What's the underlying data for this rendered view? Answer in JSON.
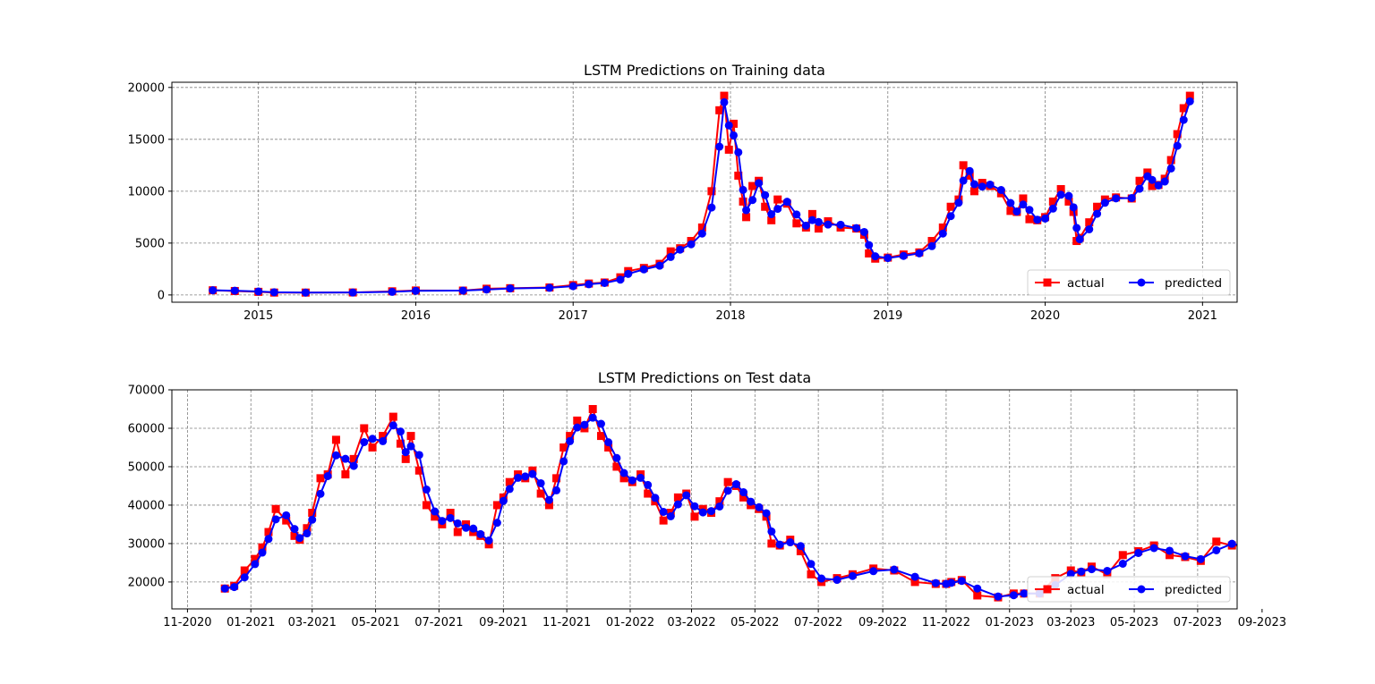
{
  "colors": {
    "actual": "#ff0000",
    "predicted": "#0000ff",
    "grid": "#808080"
  },
  "chart_data": [
    {
      "type": "line",
      "title": "LSTM Predictions on Training data",
      "grid": true,
      "legend_position": "lower-right",
      "xlim": [
        2014.45,
        2021.22
      ],
      "ylim": [
        -700,
        20500
      ],
      "x_ticks": [
        {
          "value": 2015,
          "label": "2015"
        },
        {
          "value": 2016,
          "label": "2016"
        },
        {
          "value": 2017,
          "label": "2017"
        },
        {
          "value": 2018,
          "label": "2018"
        },
        {
          "value": 2019,
          "label": "2019"
        },
        {
          "value": 2020,
          "label": "2020"
        },
        {
          "value": 2021,
          "label": "2021"
        }
      ],
      "y_ticks": [
        {
          "value": 0,
          "label": "0"
        },
        {
          "value": 5000,
          "label": "5000"
        },
        {
          "value": 10000,
          "label": "10000"
        },
        {
          "value": 15000,
          "label": "15000"
        },
        {
          "value": 20000,
          "label": "20000"
        }
      ],
      "series": [
        {
          "name": "actual",
          "marker": "square",
          "color": "#ff0000"
        },
        {
          "name": "predicted",
          "marker": "circle",
          "color": "#0000ff"
        }
      ],
      "x": [
        2014.71,
        2014.85,
        2015.0,
        2015.1,
        2015.3,
        2015.6,
        2015.85,
        2016.0,
        2016.3,
        2016.45,
        2016.6,
        2016.85,
        2017.0,
        2017.1,
        2017.2,
        2017.3,
        2017.35,
        2017.45,
        2017.55,
        2017.62,
        2017.68,
        2017.75,
        2017.82,
        2017.88,
        2017.93,
        2017.96,
        2017.99,
        2018.02,
        2018.05,
        2018.08,
        2018.1,
        2018.14,
        2018.18,
        2018.22,
        2018.26,
        2018.3,
        2018.36,
        2018.42,
        2018.48,
        2018.52,
        2018.56,
        2018.62,
        2018.7,
        2018.8,
        2018.85,
        2018.88,
        2018.92,
        2019.0,
        2019.1,
        2019.2,
        2019.28,
        2019.35,
        2019.4,
        2019.45,
        2019.48,
        2019.52,
        2019.55,
        2019.6,
        2019.65,
        2019.72,
        2019.78,
        2019.82,
        2019.86,
        2019.9,
        2019.95,
        2020.0,
        2020.05,
        2020.1,
        2020.15,
        2020.18,
        2020.2,
        2020.22,
        2020.28,
        2020.33,
        2020.38,
        2020.45,
        2020.55,
        2020.6,
        2020.65,
        2020.68,
        2020.72,
        2020.76,
        2020.8,
        2020.84,
        2020.88,
        2020.92
      ],
      "values": [
        450,
        380,
        300,
        230,
        230,
        240,
        350,
        430,
        420,
        600,
        650,
        720,
        950,
        1100,
        1200,
        1700,
        2300,
        2600,
        3000,
        4200,
        4500,
        5200,
        6500,
        10000,
        17800,
        19200,
        14000,
        16500,
        11500,
        9000,
        7500,
        10500,
        11000,
        8500,
        7200,
        9200,
        8800,
        6900,
        6500,
        7800,
        6400,
        7100,
        6500,
        6400,
        5800,
        4000,
        3500,
        3600,
        3900,
        4100,
        5200,
        6500,
        8500,
        9200,
        12500,
        11500,
        10000,
        10800,
        10500,
        9800,
        8100,
        8000,
        9300,
        7300,
        7200,
        7500,
        9000,
        10200,
        9000,
        8000,
        5200,
        5500,
        7000,
        8500,
        9200,
        9400,
        9300,
        11000,
        11800,
        10500,
        10600,
        11200,
        13000,
        15500,
        18000,
        19200
      ]
    },
    {
      "type": "line",
      "title": "LSTM Predictions on Test data",
      "grid": true,
      "legend_position": "lower-right",
      "xlim": [
        -25,
        1000
      ],
      "ylim": [
        13000,
        70000
      ],
      "x_ticks": [
        {
          "value": -10,
          "label": "11-2020"
        },
        {
          "value": 51,
          "label": "01-2021"
        },
        {
          "value": 110,
          "label": "03-2021"
        },
        {
          "value": 171,
          "label": "05-2021"
        },
        {
          "value": 232,
          "label": "07-2021"
        },
        {
          "value": 294,
          "label": "09-2021"
        },
        {
          "value": 355,
          "label": "11-2021"
        },
        {
          "value": 416,
          "label": "01-2022"
        },
        {
          "value": 475,
          "label": "03-2022"
        },
        {
          "value": 536,
          "label": "05-2022"
        },
        {
          "value": 597,
          "label": "07-2022"
        },
        {
          "value": 659,
          "label": "09-2022"
        },
        {
          "value": 720,
          "label": "11-2022"
        },
        {
          "value": 781,
          "label": "01-2023"
        },
        {
          "value": 840,
          "label": "03-2023"
        },
        {
          "value": 901,
          "label": "05-2023"
        },
        {
          "value": 962,
          "label": "07-2023"
        },
        {
          "value": 1024,
          "label": "09-2023"
        }
      ],
      "y_ticks": [
        {
          "value": 20000,
          "label": "20000"
        },
        {
          "value": 30000,
          "label": "30000"
        },
        {
          "value": 40000,
          "label": "40000"
        },
        {
          "value": 50000,
          "label": "50000"
        },
        {
          "value": 60000,
          "label": "60000"
        },
        {
          "value": 70000,
          "label": "70000"
        }
      ],
      "series": [
        {
          "name": "actual",
          "marker": "square",
          "color": "#ff0000"
        },
        {
          "name": "predicted",
          "marker": "circle",
          "color": "#0000ff"
        }
      ],
      "x": [
        26,
        35,
        45,
        55,
        62,
        68,
        75,
        85,
        93,
        98,
        105,
        110,
        118,
        125,
        133,
        142,
        150,
        160,
        168,
        178,
        188,
        195,
        200,
        205,
        213,
        220,
        228,
        235,
        243,
        250,
        258,
        265,
        272,
        280,
        288,
        294,
        300,
        308,
        315,
        322,
        330,
        338,
        345,
        352,
        358,
        365,
        372,
        380,
        388,
        395,
        403,
        410,
        418,
        426,
        433,
        440,
        448,
        455,
        462,
        470,
        478,
        486,
        494,
        502,
        510,
        518,
        525,
        532,
        540,
        547,
        552,
        560,
        570,
        580,
        590,
        600,
        615,
        630,
        650,
        670,
        690,
        710,
        720,
        725,
        735,
        750,
        770,
        785,
        795,
        810,
        825,
        840,
        850,
        860,
        875,
        890,
        905,
        920,
        935,
        950,
        965,
        980,
        995,
        1005
      ],
      "values": [
        18300,
        19000,
        23000,
        26000,
        29000,
        33000,
        39000,
        36000,
        32000,
        31000,
        34000,
        38000,
        47000,
        48000,
        57000,
        48000,
        52000,
        60000,
        55000,
        58000,
        63000,
        56000,
        52000,
        58000,
        49000,
        40000,
        37000,
        35000,
        38000,
        33000,
        35000,
        33000,
        32000,
        29800,
        40000,
        42000,
        46000,
        48000,
        47000,
        49000,
        43000,
        40000,
        47000,
        55000,
        58000,
        62000,
        60000,
        65000,
        58000,
        55000,
        50000,
        47000,
        46000,
        48000,
        43000,
        41000,
        36000,
        38000,
        42000,
        43000,
        37000,
        39000,
        38000,
        41000,
        46000,
        45000,
        42000,
        40000,
        39000,
        37000,
        30000,
        29500,
        31000,
        28000,
        22000,
        20000,
        21000,
        22000,
        23500,
        23000,
        20000,
        19500,
        19500,
        20000,
        20500,
        16500,
        16000,
        17000,
        17000,
        17000,
        21000,
        23000,
        22500,
        24000,
        22000,
        27000,
        28000,
        29500,
        27000,
        26500,
        25500,
        30500,
        29500,
        29400
      ]
    }
  ],
  "legend": {
    "actual_label": "actual",
    "predicted_label": "predicted"
  }
}
